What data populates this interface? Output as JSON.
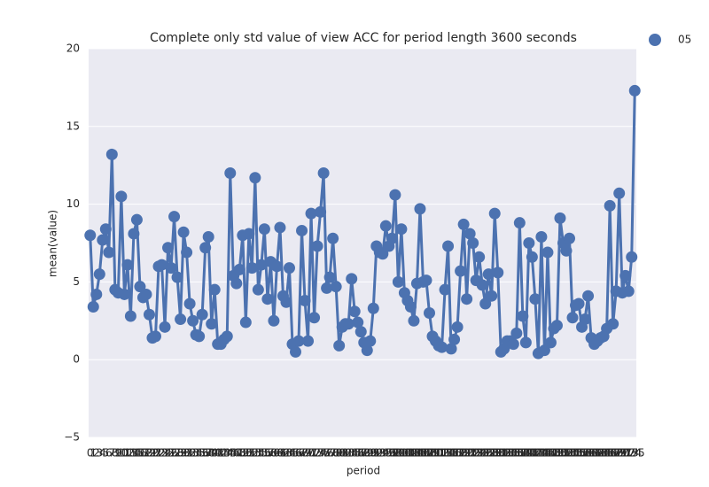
{
  "chart_data": {
    "type": "line",
    "title": "Complete only std value of view ACC for period length 3600 seconds",
    "xlabel": "period",
    "ylabel": "mean(value)",
    "categories": [
      0,
      1,
      2,
      3,
      4,
      5,
      6,
      7,
      8,
      9,
      10,
      11,
      12,
      13,
      14,
      15,
      16,
      17,
      18,
      19,
      20,
      21,
      22,
      23,
      24,
      25,
      26,
      27,
      28,
      29,
      30,
      31,
      32,
      33,
      34,
      35,
      36,
      37,
      38,
      39,
      40,
      41,
      42,
      43,
      44,
      45,
      46,
      47,
      48,
      49,
      50,
      51,
      52,
      53,
      54,
      55,
      56,
      57,
      58,
      59,
      60,
      61,
      62,
      63,
      64,
      65,
      66,
      67,
      68,
      69,
      70,
      71,
      72,
      73,
      74,
      75,
      76,
      77,
      78,
      79,
      80,
      81,
      82,
      83,
      84,
      85,
      86,
      87,
      88,
      89,
      90,
      91,
      92,
      93,
      94,
      95,
      96,
      97,
      98,
      99,
      100,
      101,
      102,
      103,
      104,
      105,
      106,
      107,
      108,
      109,
      110,
      111,
      112,
      113,
      114,
      115,
      116,
      117,
      118,
      119,
      120,
      121,
      122,
      123,
      124,
      125,
      126,
      127,
      128,
      129,
      130,
      131,
      132,
      133,
      134,
      135,
      136,
      137,
      138,
      139,
      140,
      141,
      142,
      143,
      144,
      145,
      146,
      147,
      148,
      149,
      150,
      151,
      152,
      153,
      154,
      155,
      156,
      157,
      158,
      159,
      160,
      161,
      162,
      163,
      164,
      165,
      166,
      167,
      168,
      169,
      170,
      171,
      172,
      173,
      174,
      175
    ],
    "series": [
      {
        "name": "05",
        "color": "#4c72b0",
        "values": [
          8.0,
          3.4,
          4.2,
          5.5,
          7.7,
          8.4,
          6.9,
          13.2,
          4.5,
          4.3,
          10.5,
          4.2,
          6.1,
          2.8,
          8.1,
          9.0,
          4.7,
          4.0,
          4.2,
          2.9,
          1.4,
          1.5,
          6.0,
          6.1,
          2.1,
          7.2,
          5.9,
          9.2,
          5.3,
          2.6,
          8.2,
          6.9,
          3.6,
          2.5,
          1.6,
          1.5,
          2.9,
          7.2,
          7.9,
          2.3,
          4.5,
          1.0,
          1.0,
          1.3,
          1.5,
          12.0,
          5.4,
          4.9,
          5.8,
          8.0,
          2.4,
          8.1,
          5.9,
          11.7,
          4.5,
          6.1,
          8.4,
          3.9,
          6.3,
          2.5,
          6.0,
          8.5,
          4.1,
          3.7,
          5.9,
          1.0,
          0.5,
          1.2,
          8.3,
          3.8,
          1.2,
          9.4,
          2.7,
          7.3,
          9.5,
          12.0,
          4.6,
          5.3,
          7.8,
          4.7,
          0.9,
          2.1,
          2.3,
          2.3,
          5.2,
          3.1,
          2.4,
          1.8,
          1.1,
          0.6,
          1.2,
          3.3,
          7.3,
          6.9,
          6.8,
          8.6,
          7.3,
          7.8,
          10.6,
          5.0,
          8.4,
          4.3,
          3.8,
          3.4,
          2.5,
          4.9,
          9.7,
          5.0,
          5.1,
          3.0,
          1.5,
          1.2,
          0.9,
          0.8,
          4.5,
          7.3,
          0.7,
          1.3,
          2.1,
          5.7,
          8.7,
          3.9,
          8.1,
          7.5,
          5.1,
          6.6,
          4.8,
          3.6,
          5.5,
          4.1,
          9.4,
          5.6,
          0.5,
          0.7,
          1.2,
          1.2,
          1.0,
          1.7,
          8.8,
          2.8,
          1.1,
          7.5,
          6.6,
          3.9,
          0.4,
          7.9,
          0.6,
          6.9,
          1.1,
          2.0,
          2.2,
          9.1,
          7.5,
          7.0,
          7.8,
          2.7,
          3.5,
          3.6,
          2.1,
          2.6,
          4.1,
          1.4,
          1.0,
          1.2,
          1.4,
          1.5,
          2.0,
          9.9,
          2.3,
          4.4,
          10.7,
          4.3,
          5.4,
          4.4,
          6.6,
          17.3
        ]
      }
    ],
    "ylim": [
      -5,
      20
    ],
    "yticks": [
      {
        "value": -5,
        "label": "−5"
      },
      0,
      5,
      10,
      15,
      20
    ],
    "grid": true,
    "legend": "upper right outside"
  }
}
